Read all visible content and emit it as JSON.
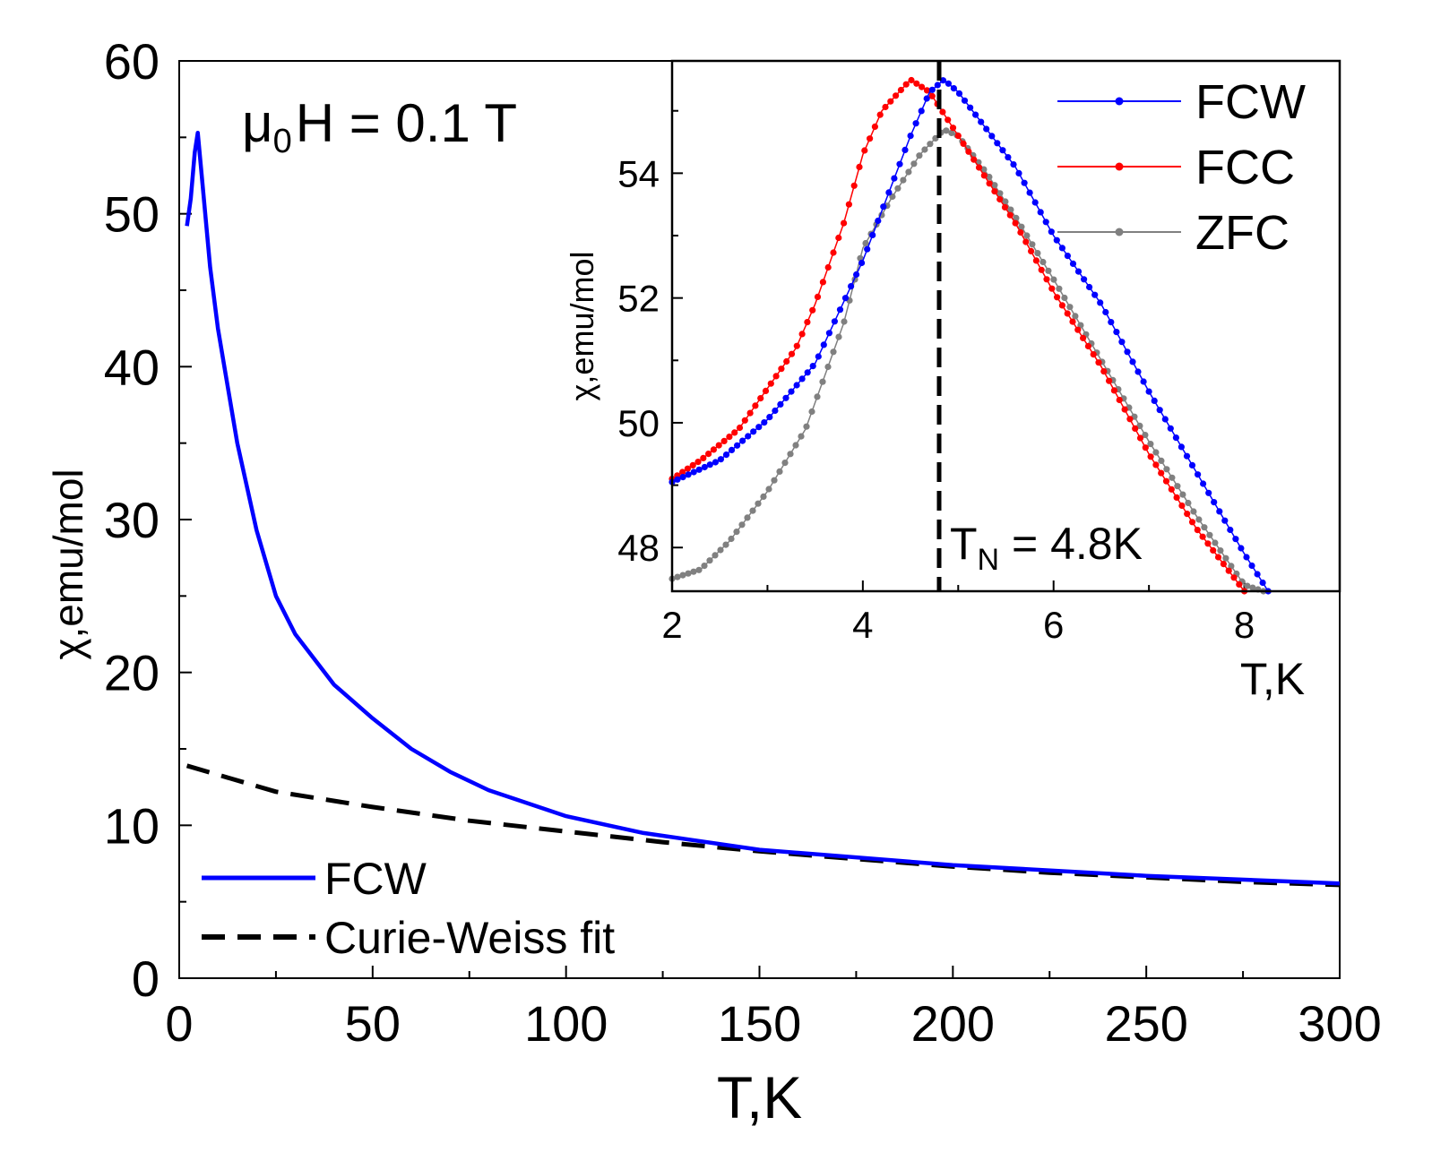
{
  "chart_data": [
    {
      "type": "line",
      "name": "main",
      "title": "",
      "xlabel": "T,K",
      "ylabel": "χ,emu/mol",
      "xlim": [
        0,
        300
      ],
      "ylim": [
        0,
        60
      ],
      "xticks": [
        "0",
        "50",
        "100",
        "150",
        "200",
        "250",
        "300"
      ],
      "yticks": [
        "0",
        "10",
        "20",
        "30",
        "40",
        "50",
        "60"
      ],
      "annotation": {
        "prefix": "μ",
        "sub": "0",
        "suffix": "H = 0.1 T"
      },
      "series": [
        {
          "name": "FCW",
          "color": "#0000ff",
          "style": "solid",
          "x": [
            2,
            3,
            4,
            4.8,
            6,
            8,
            10,
            12,
            15,
            20,
            25,
            30,
            40,
            50,
            60,
            70,
            80,
            100,
            120,
            150,
            200,
            250,
            300
          ],
          "y": [
            49.2,
            51.0,
            54.0,
            55.3,
            52.0,
            46.5,
            42.5,
            39.5,
            35.0,
            29.3,
            25.0,
            22.5,
            19.2,
            17.0,
            15.0,
            13.5,
            12.3,
            10.6,
            9.5,
            8.4,
            7.4,
            6.7,
            6.2
          ]
        },
        {
          "name": "Curie-Weiss fit",
          "color": "#000000",
          "style": "dashed",
          "x": [
            2,
            25,
            50,
            75,
            100,
            125,
            150,
            175,
            200,
            225,
            250,
            275,
            300
          ],
          "y": [
            13.9,
            12.2,
            11.2,
            10.3,
            9.6,
            8.9,
            8.3,
            7.8,
            7.3,
            6.9,
            6.6,
            6.3,
            6.1
          ]
        }
      ],
      "legend": [
        "FCW",
        "Curie-Weiss fit"
      ],
      "legend_position": "bottom-left"
    },
    {
      "type": "scatter",
      "name": "inset",
      "title": "",
      "xlabel": "T,K",
      "ylabel": "χ,emu/mol",
      "xlim": [
        2,
        9
      ],
      "ylim": [
        47.3,
        55.8
      ],
      "xticks": [
        "2",
        "4",
        "6",
        "8"
      ],
      "yticks": [
        "48",
        "50",
        "52",
        "54"
      ],
      "vline": {
        "x": 4.8,
        "label_main": "T",
        "label_sub": "N",
        "label_suffix": " = 4.8K"
      },
      "series": [
        {
          "name": "FCW",
          "color": "#0000ff",
          "x": [
            2.0,
            2.5,
            3.0,
            3.5,
            4.0,
            4.3,
            4.5,
            4.7,
            4.85,
            5.0,
            5.3,
            5.6,
            6.0,
            6.5,
            7.0,
            7.5,
            8.0,
            8.25
          ],
          "y": [
            49.05,
            49.4,
            50.05,
            50.95,
            52.6,
            53.8,
            54.6,
            55.3,
            55.5,
            55.3,
            54.7,
            54.1,
            53.0,
            51.9,
            50.5,
            49.2,
            47.9,
            47.3
          ]
        },
        {
          "name": "FCC",
          "color": "#ff0000",
          "x": [
            2.0,
            2.3,
            2.7,
            3.0,
            3.3,
            3.5,
            3.8,
            4.0,
            4.2,
            4.5,
            4.7,
            5.0,
            5.3,
            5.6,
            6.0,
            6.5,
            7.0,
            7.5,
            8.0
          ],
          "y": [
            49.1,
            49.4,
            49.9,
            50.55,
            51.2,
            51.9,
            53.2,
            54.3,
            55.0,
            55.5,
            55.3,
            54.6,
            53.9,
            53.2,
            52.1,
            50.9,
            49.5,
            48.3,
            47.3
          ]
        },
        {
          "name": "ZFC",
          "color": "#808080",
          "x": [
            2.0,
            2.3,
            2.6,
            3.0,
            3.4,
            3.8,
            4.0,
            4.3,
            4.6,
            4.85,
            5.0,
            5.3,
            5.6,
            6.0,
            6.5,
            7.0,
            7.5,
            8.0,
            8.2
          ],
          "y": [
            47.5,
            47.65,
            48.1,
            48.9,
            49.9,
            51.6,
            52.8,
            53.6,
            54.3,
            54.7,
            54.6,
            54.0,
            53.3,
            52.3,
            51.0,
            49.7,
            48.5,
            47.4,
            47.3
          ]
        }
      ],
      "legend": [
        "FCW",
        "FCC",
        "ZFC"
      ],
      "legend_position": "top-right"
    }
  ]
}
